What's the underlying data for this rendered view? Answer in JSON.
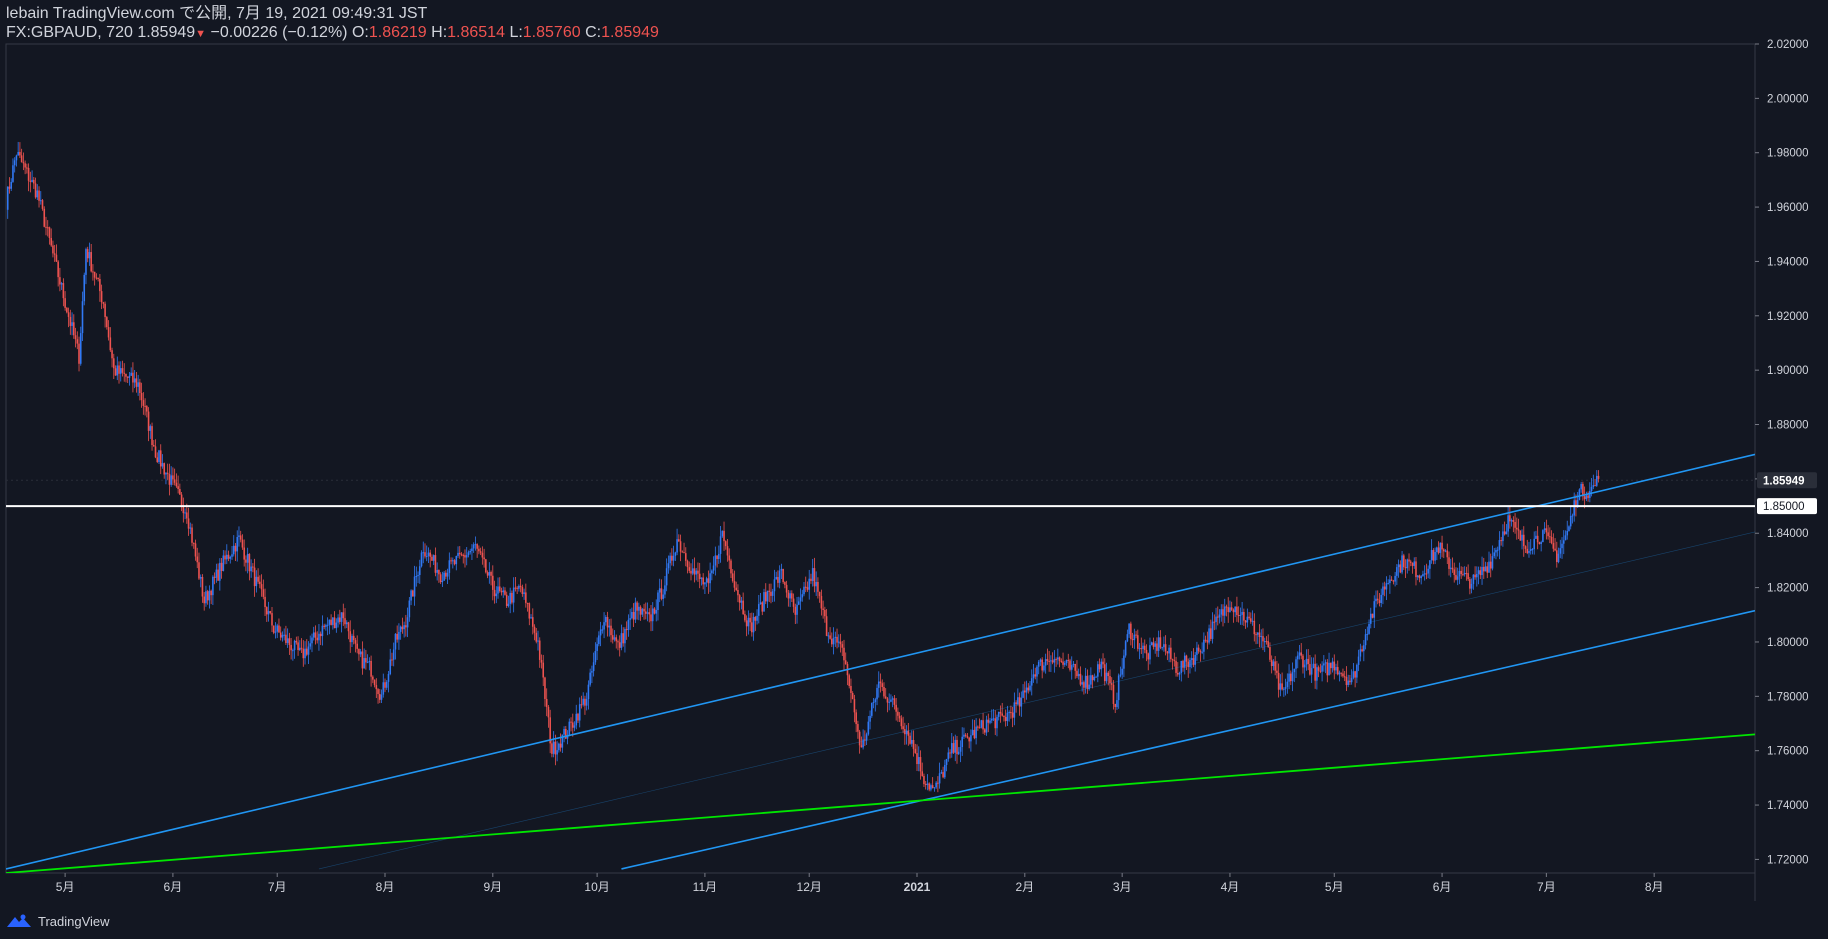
{
  "header": {
    "publisher": "lebain TradingView.com で公開, 7月 19, 2021 09:49:31 JST",
    "symbol": "FX:GBPAUD, 720",
    "last": "1.85949",
    "change": "−0.00226 (−0.12%)",
    "o_label": "O:",
    "o_value": "1.86219",
    "h_label": "H:",
    "h_value": "1.86514",
    "l_label": "L:",
    "l_value": "1.85760",
    "c_label": "C:",
    "c_value": "1.85949"
  },
  "footer": {
    "brand": "TradingView"
  },
  "colors": {
    "background": "#131722",
    "up": "#2962ff",
    "up_body": "#3179f5",
    "down": "#ef5350",
    "trendline": "#2196f3",
    "support": "#00e600",
    "level": "#ffffff",
    "grid": "#2a2e39"
  },
  "chart_data": {
    "type": "candlestick",
    "symbol": "FX:GBPAUD",
    "interval": "720",
    "ylim": [
      1.715,
      2.02
    ],
    "y_ticks": [
      2.02,
      2.0,
      1.98,
      1.96,
      1.94,
      1.92,
      1.9,
      1.88,
      1.86,
      1.84,
      1.82,
      1.8,
      1.78,
      1.76,
      1.74,
      1.72
    ],
    "y_tick_labels": [
      "2.02000",
      "2.00000",
      "1.98000",
      "1.96000",
      "1.94000",
      "1.92000",
      "1.90000",
      "1.88000",
      "1.86000",
      "1.84000",
      "1.82000",
      "1.80000",
      "1.78000",
      "1.76000",
      "1.74000",
      "1.72000"
    ],
    "x_range": [
      "2020-04-14",
      "2021-08-30"
    ],
    "x_ticks": [
      {
        "date": "2020-05-01",
        "label": "5月"
      },
      {
        "date": "2020-06-01",
        "label": "6月"
      },
      {
        "date": "2020-07-01",
        "label": "7月"
      },
      {
        "date": "2020-08-01",
        "label": "8月"
      },
      {
        "date": "2020-09-01",
        "label": "9月"
      },
      {
        "date": "2020-10-01",
        "label": "10月"
      },
      {
        "date": "2020-11-01",
        "label": "11月"
      },
      {
        "date": "2020-12-01",
        "label": "12月"
      },
      {
        "date": "2021-01-01",
        "label": "2021"
      },
      {
        "date": "2021-02-01",
        "label": "2月"
      },
      {
        "date": "2021-03-01",
        "label": "3月"
      },
      {
        "date": "2021-04-01",
        "label": "4月"
      },
      {
        "date": "2021-05-01",
        "label": "5月"
      },
      {
        "date": "2021-06-01",
        "label": "6月"
      },
      {
        "date": "2021-07-01",
        "label": "7月"
      },
      {
        "date": "2021-08-01",
        "label": "8月"
      }
    ],
    "close_path": [
      {
        "date": "2020-04-14",
        "close": 1.962
      },
      {
        "date": "2020-04-17",
        "close": 1.98
      },
      {
        "date": "2020-04-23",
        "close": 1.965
      },
      {
        "date": "2020-04-28",
        "close": 1.94
      },
      {
        "date": "2020-05-05",
        "close": 1.905
      },
      {
        "date": "2020-05-07",
        "close": 1.945
      },
      {
        "date": "2020-05-12",
        "close": 1.925
      },
      {
        "date": "2020-05-15",
        "close": 1.9
      },
      {
        "date": "2020-05-22",
        "close": 1.895
      },
      {
        "date": "2020-05-27",
        "close": 1.87
      },
      {
        "date": "2020-06-02",
        "close": 1.855
      },
      {
        "date": "2020-06-05",
        "close": 1.848
      },
      {
        "date": "2020-06-10",
        "close": 1.815
      },
      {
        "date": "2020-06-15",
        "close": 1.828
      },
      {
        "date": "2020-06-20",
        "close": 1.838
      },
      {
        "date": "2020-06-24",
        "close": 1.825
      },
      {
        "date": "2020-06-30",
        "close": 1.805
      },
      {
        "date": "2020-07-08",
        "close": 1.795
      },
      {
        "date": "2020-07-14",
        "close": 1.805
      },
      {
        "date": "2020-07-20",
        "close": 1.81
      },
      {
        "date": "2020-07-24",
        "close": 1.795
      },
      {
        "date": "2020-07-28",
        "close": 1.79
      },
      {
        "date": "2020-07-31",
        "close": 1.78
      },
      {
        "date": "2020-08-04",
        "close": 1.8
      },
      {
        "date": "2020-08-07",
        "close": 1.808
      },
      {
        "date": "2020-08-12",
        "close": 1.835
      },
      {
        "date": "2020-08-17",
        "close": 1.825
      },
      {
        "date": "2020-08-22",
        "close": 1.83
      },
      {
        "date": "2020-08-27",
        "close": 1.835
      },
      {
        "date": "2020-09-01",
        "close": 1.82
      },
      {
        "date": "2020-09-05",
        "close": 1.815
      },
      {
        "date": "2020-09-09",
        "close": 1.82
      },
      {
        "date": "2020-09-14",
        "close": 1.8
      },
      {
        "date": "2020-09-18",
        "close": 1.76
      },
      {
        "date": "2020-09-23",
        "close": 1.768
      },
      {
        "date": "2020-09-28",
        "close": 1.78
      },
      {
        "date": "2020-10-03",
        "close": 1.81
      },
      {
        "date": "2020-10-07",
        "close": 1.798
      },
      {
        "date": "2020-10-12",
        "close": 1.812
      },
      {
        "date": "2020-10-16",
        "close": 1.808
      },
      {
        "date": "2020-10-20",
        "close": 1.82
      },
      {
        "date": "2020-10-24",
        "close": 1.838
      },
      {
        "date": "2020-10-29",
        "close": 1.825
      },
      {
        "date": "2020-11-02",
        "close": 1.82
      },
      {
        "date": "2020-11-06",
        "close": 1.84
      },
      {
        "date": "2020-11-10",
        "close": 1.82
      },
      {
        "date": "2020-11-14",
        "close": 1.805
      },
      {
        "date": "2020-11-19",
        "close": 1.818
      },
      {
        "date": "2020-11-23",
        "close": 1.825
      },
      {
        "date": "2020-11-27",
        "close": 1.81
      },
      {
        "date": "2020-12-02",
        "close": 1.825
      },
      {
        "date": "2020-12-06",
        "close": 1.805
      },
      {
        "date": "2020-12-11",
        "close": 1.795
      },
      {
        "date": "2020-12-16",
        "close": 1.76
      },
      {
        "date": "2020-12-21",
        "close": 1.785
      },
      {
        "date": "2020-12-26",
        "close": 1.775
      },
      {
        "date": "2020-12-30",
        "close": 1.765
      },
      {
        "date": "2021-01-03",
        "close": 1.75
      },
      {
        "date": "2021-01-06",
        "close": 1.745
      },
      {
        "date": "2021-01-11",
        "close": 1.76
      },
      {
        "date": "2021-01-16",
        "close": 1.765
      },
      {
        "date": "2021-01-21",
        "close": 1.77
      },
      {
        "date": "2021-01-26",
        "close": 1.772
      },
      {
        "date": "2021-01-31",
        "close": 1.778
      },
      {
        "date": "2021-02-04",
        "close": 1.79
      },
      {
        "date": "2021-02-09",
        "close": 1.795
      },
      {
        "date": "2021-02-14",
        "close": 1.79
      },
      {
        "date": "2021-02-19",
        "close": 1.785
      },
      {
        "date": "2021-02-23",
        "close": 1.792
      },
      {
        "date": "2021-02-27",
        "close": 1.778
      },
      {
        "date": "2021-03-03",
        "close": 1.805
      },
      {
        "date": "2021-03-08",
        "close": 1.795
      },
      {
        "date": "2021-03-12",
        "close": 1.8
      },
      {
        "date": "2021-03-17",
        "close": 1.79
      },
      {
        "date": "2021-03-22",
        "close": 1.795
      },
      {
        "date": "2021-03-27",
        "close": 1.805
      },
      {
        "date": "2021-04-01",
        "close": 1.815
      },
      {
        "date": "2021-04-06",
        "close": 1.808
      },
      {
        "date": "2021-04-11",
        "close": 1.8
      },
      {
        "date": "2021-04-16",
        "close": 1.78
      },
      {
        "date": "2021-04-21",
        "close": 1.795
      },
      {
        "date": "2021-04-26",
        "close": 1.788
      },
      {
        "date": "2021-05-01",
        "close": 1.792
      },
      {
        "date": "2021-05-06",
        "close": 1.785
      },
      {
        "date": "2021-05-11",
        "close": 1.808
      },
      {
        "date": "2021-05-16",
        "close": 1.822
      },
      {
        "date": "2021-05-21",
        "close": 1.83
      },
      {
        "date": "2021-05-26",
        "close": 1.825
      },
      {
        "date": "2021-05-31",
        "close": 1.835
      },
      {
        "date": "2021-06-05",
        "close": 1.825
      },
      {
        "date": "2021-06-10",
        "close": 1.822
      },
      {
        "date": "2021-06-15",
        "close": 1.83
      },
      {
        "date": "2021-06-20",
        "close": 1.845
      },
      {
        "date": "2021-06-25",
        "close": 1.835
      },
      {
        "date": "2021-06-30",
        "close": 1.84
      },
      {
        "date": "2021-07-04",
        "close": 1.832
      },
      {
        "date": "2021-07-07",
        "close": 1.84
      },
      {
        "date": "2021-07-10",
        "close": 1.855
      },
      {
        "date": "2021-07-14",
        "close": 1.856
      },
      {
        "date": "2021-07-16",
        "close": 1.86
      }
    ],
    "horizontal_levels": [
      {
        "price": 1.85,
        "label": "1.85000"
      }
    ],
    "last_price": {
      "price": 1.85949,
      "label": "1.85949"
    },
    "trendlines": [
      {
        "kind": "channel-upper",
        "from": {
          "date": "2020-04-14",
          "price": 1.7165
        },
        "to": {
          "date": "2021-08-30",
          "price": 1.869
        }
      },
      {
        "kind": "channel-lower",
        "from": {
          "date": "2020-10-08",
          "price": 1.7165
        },
        "to": {
          "date": "2021-08-30",
          "price": 1.8115
        }
      },
      {
        "kind": "channel-mid",
        "from": {
          "date": "2020-07-13",
          "price": 1.7165
        },
        "to": {
          "date": "2021-08-30",
          "price": 1.8405
        }
      },
      {
        "kind": "support",
        "from": {
          "date": "2020-04-14",
          "price": 1.715
        },
        "to": {
          "date": "2021-08-30",
          "price": 1.766
        }
      }
    ]
  }
}
